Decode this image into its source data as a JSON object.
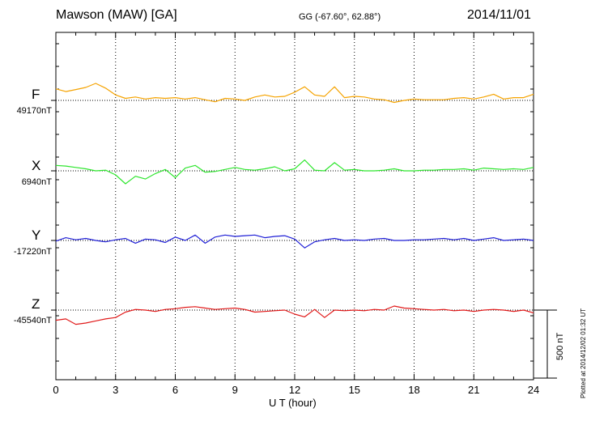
{
  "header": {
    "station": "Mawson (MAW)  [GA]",
    "coords": "GG (-67.60°,  62.88°)",
    "date": "2014/11/01"
  },
  "side_note": "Plotted at 2014/12/02 01:32 UT",
  "scale_label": "500 nT",
  "chart_data": {
    "type": "line",
    "xlabel": "U T (hour)",
    "xlim": [
      0,
      24
    ],
    "xticks": [
      "0",
      "3",
      "6",
      "9",
      "12",
      "15",
      "18",
      "21",
      "24"
    ],
    "grid": "dotted vertical at every 3 hours",
    "scale_bar_nT": 500,
    "series": [
      {
        "name": "F",
        "baseline_label": "49170nT",
        "color": "#f5a300",
        "x": [
          0,
          0.5,
          1,
          1.5,
          2,
          2.5,
          3,
          3.5,
          4,
          4.5,
          5,
          5.5,
          6,
          6.5,
          7,
          7.5,
          8,
          8.5,
          9,
          9.5,
          10,
          10.5,
          11,
          11.5,
          12,
          12.5,
          13,
          13.5,
          14,
          14.5,
          15,
          15.5,
          16,
          16.5,
          17,
          17.5,
          18,
          18.5,
          19,
          19.5,
          20,
          20.5,
          21,
          21.5,
          22,
          22.5,
          23,
          23.5,
          24
        ],
        "y": [
          85,
          65,
          80,
          95,
          125,
          90,
          40,
          15,
          25,
          10,
          20,
          15,
          20,
          10,
          20,
          5,
          -10,
          15,
          10,
          0,
          25,
          40,
          25,
          30,
          60,
          100,
          40,
          30,
          100,
          20,
          30,
          25,
          10,
          5,
          -15,
          0,
          10,
          5,
          5,
          5,
          15,
          20,
          10,
          25,
          45,
          10,
          20,
          20,
          45
        ]
      },
      {
        "name": "X",
        "baseline_label": "6940nT",
        "color": "#2ee62e",
        "x": [
          0,
          0.5,
          1,
          1.5,
          2,
          2.5,
          3,
          3.5,
          4,
          4.5,
          5,
          5.5,
          6,
          6.5,
          7,
          7.5,
          8,
          8.5,
          9,
          9.5,
          10,
          10.5,
          11,
          11.5,
          12,
          12.5,
          13,
          13.5,
          14,
          14.5,
          15,
          15.5,
          16,
          16.5,
          17,
          17.5,
          18,
          18.5,
          19,
          19.5,
          20,
          20.5,
          21,
          21.5,
          22,
          22.5,
          23,
          23.5,
          24
        ],
        "y": [
          40,
          35,
          25,
          15,
          0,
          5,
          -30,
          -95,
          -40,
          -60,
          -20,
          10,
          -50,
          20,
          40,
          -10,
          -5,
          10,
          25,
          10,
          5,
          15,
          30,
          0,
          15,
          80,
          5,
          0,
          60,
          5,
          10,
          0,
          0,
          5,
          15,
          0,
          0,
          5,
          5,
          10,
          10,
          15,
          5,
          20,
          15,
          10,
          15,
          10,
          25
        ]
      },
      {
        "name": "Y",
        "baseline_label": "-17220nT",
        "color": "#1f1fd6",
        "x": [
          0,
          0.5,
          1,
          1.5,
          2,
          2.5,
          3,
          3.5,
          4,
          4.5,
          5,
          5.5,
          6,
          6.5,
          7,
          7.5,
          8,
          8.5,
          9,
          9.5,
          10,
          10.5,
          11,
          11.5,
          12,
          12.5,
          13,
          13.5,
          14,
          14.5,
          15,
          15.5,
          16,
          16.5,
          17,
          17.5,
          18,
          18.5,
          19,
          19.5,
          20,
          20.5,
          21,
          21.5,
          22,
          22.5,
          23,
          23.5,
          24
        ],
        "y": [
          -5,
          20,
          5,
          15,
          0,
          -10,
          5,
          15,
          -20,
          10,
          5,
          -15,
          25,
          0,
          40,
          -20,
          25,
          40,
          30,
          35,
          40,
          20,
          30,
          35,
          10,
          -55,
          -10,
          5,
          15,
          0,
          5,
          0,
          10,
          15,
          0,
          0,
          5,
          5,
          10,
          15,
          5,
          15,
          0,
          10,
          20,
          0,
          5,
          10,
          0
        ]
      },
      {
        "name": "Z",
        "baseline_label": "-45540nT",
        "color": "#e11a1a",
        "x": [
          0,
          0.5,
          1,
          1.5,
          2,
          2.5,
          3,
          3.5,
          4,
          4.5,
          5,
          5.5,
          6,
          6.5,
          7,
          7.5,
          8,
          8.5,
          9,
          9.5,
          10,
          10.5,
          11,
          11.5,
          12,
          12.5,
          13,
          13.5,
          14,
          14.5,
          15,
          15.5,
          16,
          16.5,
          17,
          17.5,
          18,
          18.5,
          19,
          19.5,
          20,
          20.5,
          21,
          21.5,
          22,
          22.5,
          23,
          23.5,
          24
        ],
        "y": [
          -75,
          -65,
          -105,
          -95,
          -80,
          -65,
          -55,
          -15,
          5,
          0,
          -10,
          5,
          10,
          20,
          25,
          15,
          5,
          10,
          15,
          5,
          -15,
          -10,
          -5,
          0,
          -30,
          -50,
          5,
          -55,
          0,
          -5,
          0,
          -5,
          5,
          0,
          30,
          15,
          10,
          5,
          0,
          5,
          -5,
          0,
          -10,
          0,
          5,
          0,
          -10,
          0,
          -20
        ]
      }
    ]
  }
}
